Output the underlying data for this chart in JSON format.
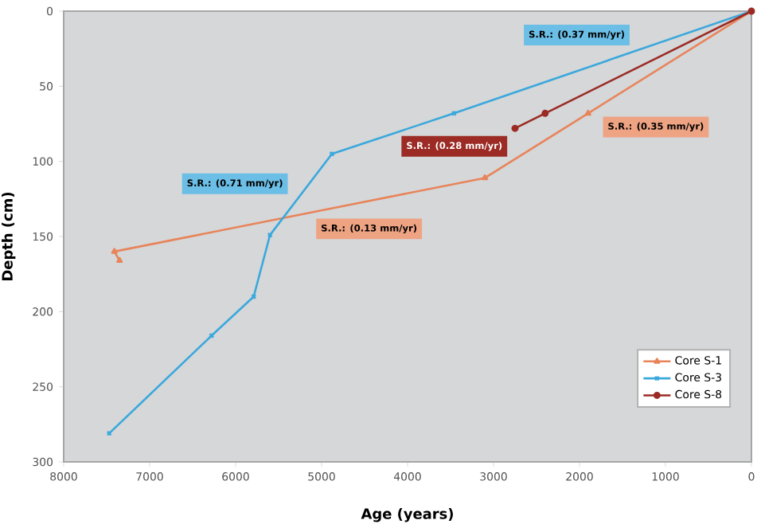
{
  "chart_data": {
    "type": "line",
    "xlabel": "Age (years)",
    "ylabel": "Depth (cm)",
    "xlim": [
      8000,
      0
    ],
    "xticks": [
      8000,
      7000,
      6000,
      5000,
      4000,
      3000,
      2000,
      1000,
      0
    ],
    "ylim": [
      300,
      0
    ],
    "yticks": [
      0,
      50,
      100,
      150,
      200,
      250,
      300
    ],
    "grid": false,
    "legend": "bottom right",
    "line_style": "solid",
    "series": [
      {
        "name": "Core S-1",
        "color": "#e8845a",
        "marker": "triangle",
        "x": [
          0,
          1900,
          3100,
          7410,
          7350
        ],
        "values": [
          0,
          68,
          111,
          160,
          166
        ]
      },
      {
        "name": "Core S-3",
        "color": "#3aa8dc",
        "marker": "cross",
        "x": [
          0,
          3460,
          4880,
          5600,
          5790,
          6280,
          7470
        ],
        "values": [
          0,
          68,
          95,
          149,
          190,
          216,
          281
        ]
      },
      {
        "name": "Core S-8",
        "color": "#9b2b24",
        "marker": "circle",
        "x": [
          0,
          2400,
          2750
        ],
        "values": [
          0,
          68,
          78
        ]
      }
    ],
    "annotations": [
      "S.R.: (0.37 mm/yr)",
      "S.R.: (0.71 mm/yr)",
      "S.R.: (0.28 mm/yr)",
      "S.R.: (0.35 mm/yr)",
      "S.R.: (0.13 mm/yr)"
    ]
  }
}
